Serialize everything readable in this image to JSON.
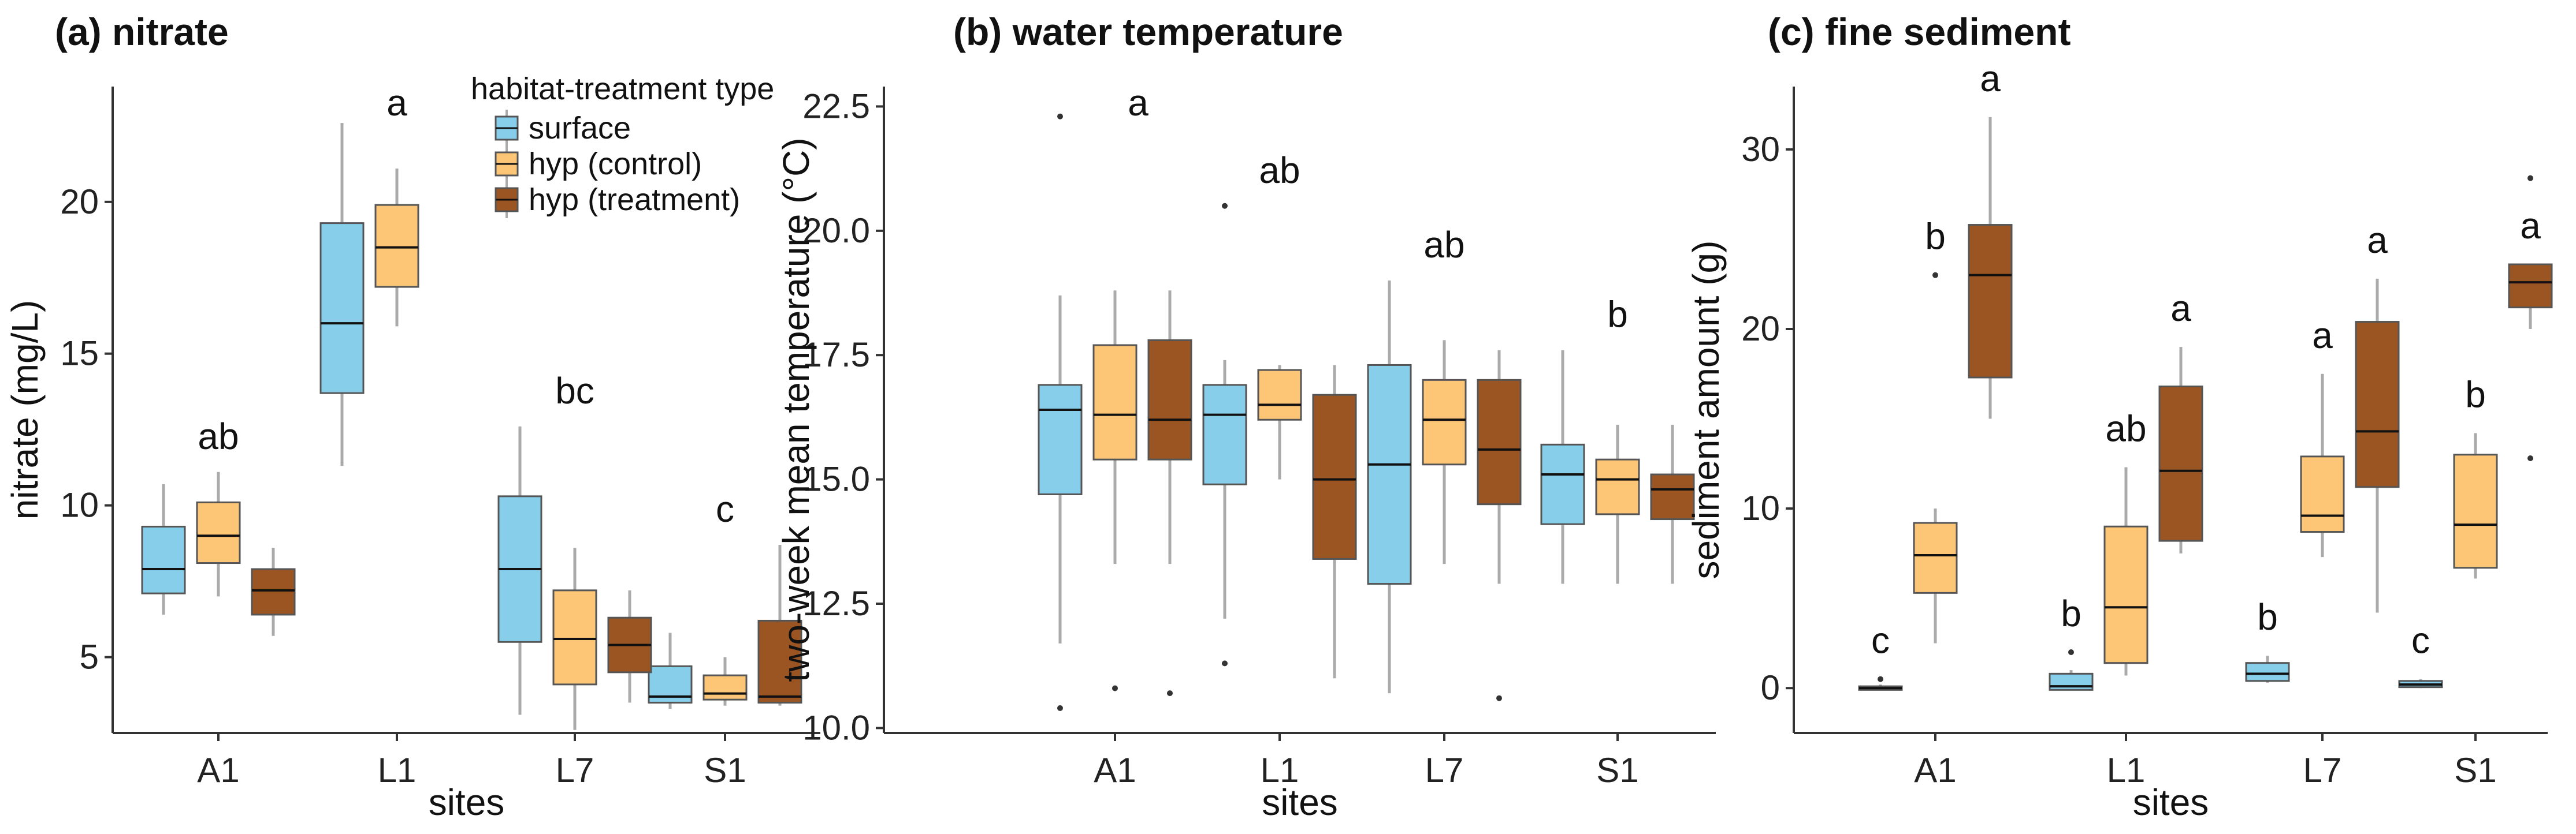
{
  "colors": {
    "surface": "#87CEEB",
    "control": "#FDC676",
    "treatment": "#9B5523",
    "axis": "#333333",
    "whisker": "#aaaaaa"
  },
  "legend": {
    "title": "habitat-treatment type",
    "items": [
      {
        "key": "surface",
        "label": "surface"
      },
      {
        "key": "control",
        "label": "hyp (control)"
      },
      {
        "key": "treatment",
        "label": "hyp (treatment)"
      }
    ]
  },
  "chart_data": [
    {
      "type": "box",
      "title": "(a) nitrate",
      "xlabel": "sites",
      "ylabel": "nitrate (mg/L)",
      "ylim": [
        2.5,
        23.8
      ],
      "yticks": [
        5,
        10,
        15,
        20
      ],
      "yticklabels": [
        "5",
        "10",
        "15",
        "20"
      ],
      "categories": [
        "A1",
        "L1",
        "L7",
        "S1"
      ],
      "significance": [
        "ab",
        "a",
        "bc",
        "c"
      ],
      "series": [
        {
          "name": "surface",
          "boxes": [
            {
              "min": 6.4,
              "q1": 7.1,
              "median": 7.9,
              "q3": 9.3,
              "max": 10.7
            },
            {
              "min": 11.3,
              "q1": 13.7,
              "median": 16.0,
              "q3": 19.3,
              "max": 22.6
            },
            {
              "min": 3.1,
              "q1": 5.5,
              "median": 7.9,
              "q3": 10.3,
              "max": 12.6
            },
            {
              "min": 3.3,
              "q1": 3.5,
              "median": 3.7,
              "q3": 4.7,
              "max": 5.8
            }
          ]
        },
        {
          "name": "hyp (control)",
          "boxes": [
            {
              "min": 7.0,
              "q1": 8.1,
              "median": 9.0,
              "q3": 10.1,
              "max": 11.1
            },
            {
              "min": 15.9,
              "q1": 17.2,
              "median": 18.5,
              "q3": 19.9,
              "max": 21.1
            },
            {
              "min": 2.6,
              "q1": 4.1,
              "median": 5.6,
              "q3": 7.2,
              "max": 8.6
            },
            {
              "min": 3.4,
              "q1": 3.6,
              "median": 3.8,
              "q3": 4.4,
              "max": 5.0
            }
          ]
        },
        {
          "name": "hyp (treatment)",
          "boxes": [
            {
              "min": 5.7,
              "q1": 6.4,
              "median": 7.2,
              "q3": 7.9,
              "max": 8.6
            },
            null,
            {
              "min": 3.5,
              "q1": 4.5,
              "median": 5.4,
              "q3": 6.3,
              "max": 7.2
            },
            {
              "min": 3.4,
              "q1": 3.5,
              "median": 3.7,
              "q3": 6.2,
              "max": 8.7
            }
          ]
        }
      ],
      "outliers": []
    },
    {
      "type": "box",
      "title": "(b) water temperature",
      "xlabel": "sites",
      "ylabel": "two-week mean temperature (°C)",
      "ylim": [
        9.9,
        22.9
      ],
      "yticks": [
        10,
        12.5,
        15,
        17.5,
        20,
        22.5
      ],
      "yticklabels": [
        "10.0",
        "12.5",
        "15.0",
        "17.5",
        "20.0",
        "22.5"
      ],
      "categories": [
        "A1",
        "L1",
        "L7",
        "S1"
      ],
      "significance": [
        "a",
        "ab",
        "ab",
        "b"
      ],
      "series": [
        {
          "name": "surface",
          "boxes": [
            {
              "min": 11.7,
              "q1": 14.7,
              "median": 16.4,
              "q3": 16.9,
              "max": 18.7
            },
            {
              "min": 12.2,
              "q1": 14.9,
              "median": 16.3,
              "q3": 16.9,
              "max": 17.4
            },
            {
              "min": 10.7,
              "q1": 12.9,
              "median": 15.3,
              "q3": 17.3,
              "max": 19.0
            },
            {
              "min": 12.9,
              "q1": 14.1,
              "median": 15.1,
              "q3": 15.7,
              "max": 17.6
            }
          ]
        },
        {
          "name": "hyp (control)",
          "boxes": [
            {
              "min": 13.3,
              "q1": 15.4,
              "median": 16.3,
              "q3": 17.7,
              "max": 18.8
            },
            {
              "min": 15.0,
              "q1": 16.2,
              "median": 16.5,
              "q3": 17.2,
              "max": 17.3
            },
            {
              "min": 13.3,
              "q1": 15.3,
              "median": 16.2,
              "q3": 17.0,
              "max": 17.8
            },
            {
              "min": 12.9,
              "q1": 14.3,
              "median": 15.0,
              "q3": 15.4,
              "max": 16.1
            }
          ]
        },
        {
          "name": "hyp (treatment)",
          "boxes": [
            {
              "min": 13.3,
              "q1": 15.4,
              "median": 16.2,
              "q3": 17.8,
              "max": 18.8
            },
            {
              "min": 11.0,
              "q1": 13.4,
              "median": 15.0,
              "q3": 16.7,
              "max": 17.3
            },
            {
              "min": 12.9,
              "q1": 14.5,
              "median": 15.6,
              "q3": 17.0,
              "max": 17.6
            },
            {
              "min": 12.9,
              "q1": 14.2,
              "median": 14.8,
              "q3": 15.1,
              "max": 16.1
            }
          ]
        }
      ],
      "outliers": [
        {
          "category": "A1",
          "series": "surface",
          "value": 22.3
        },
        {
          "category": "A1",
          "series": "surface",
          "value": 10.4
        },
        {
          "category": "A1",
          "series": "hyp (control)",
          "value": 10.8
        },
        {
          "category": "A1",
          "series": "hyp (treatment)",
          "value": 10.7
        },
        {
          "category": "L1",
          "series": "surface",
          "value": 20.5
        },
        {
          "category": "L1",
          "series": "surface",
          "value": 11.3
        },
        {
          "category": "L7",
          "series": "hyp (treatment)",
          "value": 10.6
        }
      ]
    },
    {
      "type": "box",
      "title": "(c) fine sediment",
      "xlabel": "sites",
      "ylabel": "sediment amount (g)",
      "ylim": [
        -2.5,
        33.5
      ],
      "yticks": [
        0,
        10,
        20,
        30
      ],
      "yticklabels": [
        "0",
        "10",
        "20",
        "30"
      ],
      "categories": [
        "A1",
        "L1",
        "L7",
        "S1"
      ],
      "significance": [
        {
          "surface": "c",
          "hyp (control)": "b",
          "hyp (treatment)": "a"
        },
        {
          "surface": "b",
          "hyp (control)": "ab",
          "hyp (treatment)": "a"
        },
        {
          "surface": "b",
          "hyp (control)": "a",
          "hyp (treatment)": "a"
        },
        {
          "surface": "c",
          "hyp (control)": "b",
          "hyp (treatment)": "a"
        }
      ],
      "series": [
        {
          "name": "surface",
          "boxes": [
            {
              "min": -0.1,
              "q1": -0.1,
              "median": 0.0,
              "q3": 0.1,
              "max": 0.2
            },
            {
              "min": -0.1,
              "q1": -0.1,
              "median": 0.1,
              "q3": 0.8,
              "max": 1.0
            },
            {
              "min": 0.3,
              "q1": 0.4,
              "median": 0.8,
              "q3": 1.4,
              "max": 1.8
            },
            {
              "min": 0.0,
              "q1": 0.05,
              "median": 0.2,
              "q3": 0.4,
              "max": 0.5
            }
          ]
        },
        {
          "name": "hyp (control)",
          "boxes": [
            {
              "min": 2.5,
              "q1": 5.3,
              "median": 7.4,
              "q3": 9.2,
              "max": 10.0
            },
            {
              "min": 0.7,
              "q1": 1.4,
              "median": 4.5,
              "q3": 9.0,
              "max": 12.3
            },
            {
              "min": 7.3,
              "q1": 8.7,
              "median": 9.6,
              "q3": 12.9,
              "max": 17.5
            },
            {
              "min": 6.1,
              "q1": 6.7,
              "median": 9.1,
              "q3": 13.0,
              "max": 14.2
            }
          ]
        },
        {
          "name": "hyp (treatment)",
          "boxes": [
            {
              "min": 15.0,
              "q1": 17.3,
              "median": 23.0,
              "q3": 25.8,
              "max": 31.8
            },
            {
              "min": 7.5,
              "q1": 8.2,
              "median": 12.1,
              "q3": 16.8,
              "max": 19.0
            },
            {
              "min": 4.2,
              "q1": 11.2,
              "median": 14.3,
              "q3": 20.4,
              "max": 22.8
            },
            {
              "min": 20.0,
              "q1": 21.2,
              "median": 22.6,
              "q3": 23.6,
              "max": 23.6
            }
          ]
        }
      ],
      "outliers": [
        {
          "category": "A1",
          "series": "surface",
          "value": 0.5
        },
        {
          "category": "A1",
          "series": "hyp (control)",
          "value": 23.0
        },
        {
          "category": "L1",
          "series": "surface",
          "value": 2.0
        },
        {
          "category": "S1",
          "series": "hyp (treatment)",
          "value": 28.4
        },
        {
          "category": "S1",
          "series": "hyp (treatment)",
          "value": 12.8
        }
      ]
    }
  ]
}
